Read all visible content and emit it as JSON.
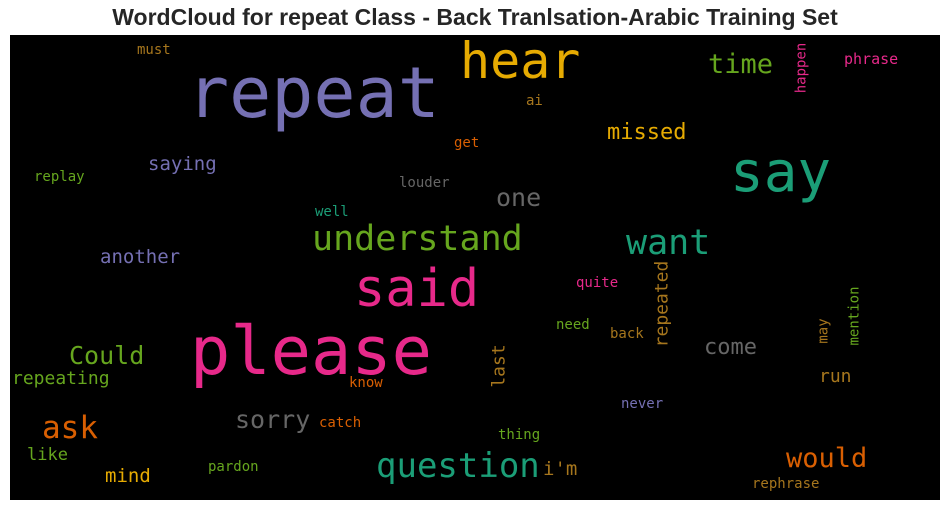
{
  "title": "WordCloud for repeat Class - Back Tranlsation-Arabic Training Set",
  "colors": {
    "background": "#000000",
    "palette": [
      "#7570b3",
      "#e6ab02",
      "#1b9e77",
      "#e7298a",
      "#66a61e",
      "#d95f02",
      "#a6761d",
      "#666666"
    ]
  },
  "words": [
    {
      "text": "repeat",
      "color": "#7570b3"
    },
    {
      "text": "hear",
      "color": "#e6ab02"
    },
    {
      "text": "time",
      "color": "#66a61e"
    },
    {
      "text": "happen",
      "color": "#e7298a"
    },
    {
      "text": "phrase",
      "color": "#e7298a"
    },
    {
      "text": "must",
      "color": "#a6761d"
    },
    {
      "text": "ai",
      "color": "#a6761d"
    },
    {
      "text": "missed",
      "color": "#e6ab02"
    },
    {
      "text": "get",
      "color": "#d95f02"
    },
    {
      "text": "say",
      "color": "#1b9e77"
    },
    {
      "text": "saying",
      "color": "#7570b3"
    },
    {
      "text": "replay",
      "color": "#66a61e"
    },
    {
      "text": "louder",
      "color": "#666666"
    },
    {
      "text": "one",
      "color": "#666666"
    },
    {
      "text": "well",
      "color": "#1b9e77"
    },
    {
      "text": "understand",
      "color": "#66a61e"
    },
    {
      "text": "want",
      "color": "#1b9e77"
    },
    {
      "text": "another",
      "color": "#7570b3"
    },
    {
      "text": "said",
      "color": "#e7298a"
    },
    {
      "text": "repeated",
      "color": "#a6761d"
    },
    {
      "text": "quite",
      "color": "#e7298a"
    },
    {
      "text": "mention",
      "color": "#66a61e"
    },
    {
      "text": "may",
      "color": "#a6761d"
    },
    {
      "text": "need",
      "color": "#66a61e"
    },
    {
      "text": "back",
      "color": "#a6761d"
    },
    {
      "text": "please",
      "color": "#e7298a"
    },
    {
      "text": "Could",
      "color": "#66a61e"
    },
    {
      "text": "come",
      "color": "#666666"
    },
    {
      "text": "last",
      "color": "#a6761d"
    },
    {
      "text": "repeating",
      "color": "#66a61e"
    },
    {
      "text": "know",
      "color": "#d95f02"
    },
    {
      "text": "run",
      "color": "#a6761d"
    },
    {
      "text": "never",
      "color": "#7570b3"
    },
    {
      "text": "ask",
      "color": "#d95f02"
    },
    {
      "text": "sorry",
      "color": "#666666"
    },
    {
      "text": "catch",
      "color": "#d95f02"
    },
    {
      "text": "thing",
      "color": "#66a61e"
    },
    {
      "text": "like",
      "color": "#66a61e"
    },
    {
      "text": "question",
      "color": "#1b9e77"
    },
    {
      "text": "would",
      "color": "#d95f02"
    },
    {
      "text": "i'm",
      "color": "#a6761d"
    },
    {
      "text": "mind",
      "color": "#e6ab02"
    },
    {
      "text": "pardon",
      "color": "#66a61e"
    },
    {
      "text": "rephrase",
      "color": "#a6761d"
    }
  ]
}
